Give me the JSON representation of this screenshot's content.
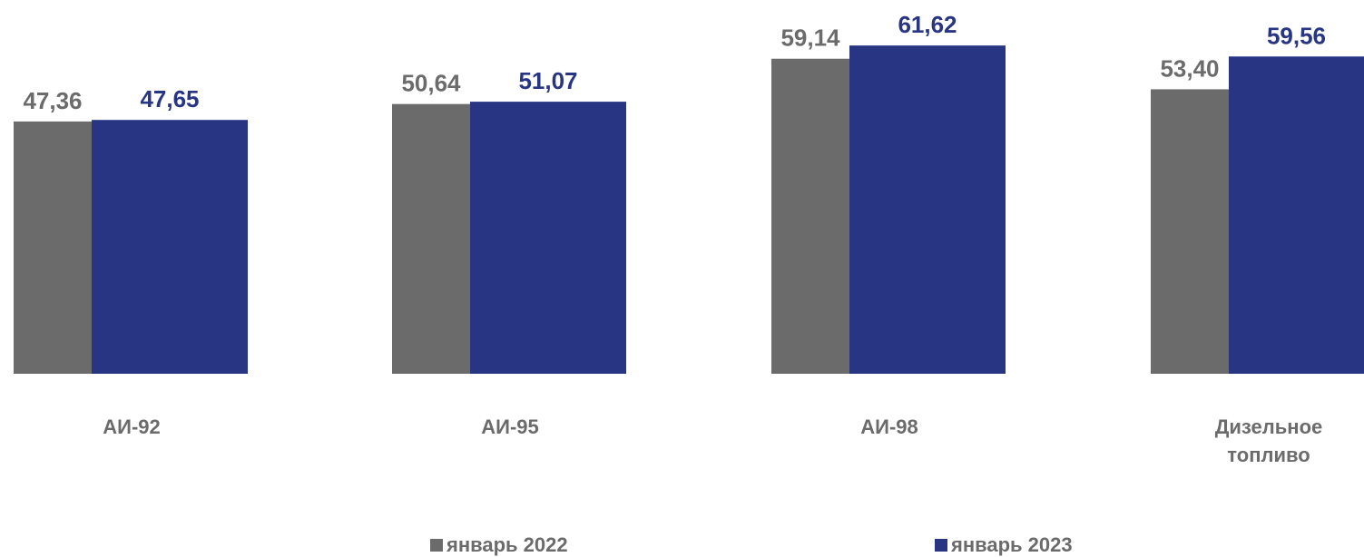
{
  "chart_data": {
    "type": "bar",
    "categories": [
      [
        "АИ-92"
      ],
      [
        "АИ-95"
      ],
      [
        "АИ-98"
      ],
      [
        "Дизельное",
        "топливо"
      ]
    ],
    "series": [
      {
        "name": "январь 2022",
        "values": [
          47.36,
          50.64,
          59.14,
          53.4
        ],
        "labels": [
          "47,36",
          "50,64",
          "59,14",
          "53,40"
        ],
        "color": "#6b6b6b"
      },
      {
        "name": "январь 2023",
        "values": [
          47.65,
          51.07,
          61.62,
          59.56
        ],
        "labels": [
          "47,65",
          "51,07",
          "61,62",
          "59,56"
        ],
        "color": "#283583"
      }
    ],
    "grid": false,
    "legend_position": "bottom",
    "title": "",
    "xlabel": "",
    "ylabel": ""
  }
}
